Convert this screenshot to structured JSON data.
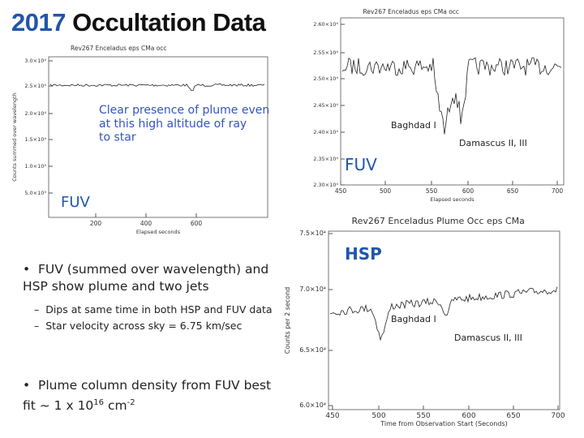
{
  "header": {
    "year": "2017",
    "title": "Occultation Data"
  },
  "figures": [
    {
      "title": "Rev267 Enceladus eps CMa occ",
      "yticks": [
        "3.0×10⁴",
        "2.5×10⁴",
        "2.0×10⁴",
        "1.5×10⁴",
        "1.0×10⁴",
        "5.0×10³"
      ],
      "xticks": [
        "200",
        "400",
        "600"
      ],
      "xlabel": "Elapsed seconds",
      "ylabel": "Counts summed over wavelength",
      "annotations": [
        "Clear presence of plume even at this high altitude of ray to star",
        "FUV"
      ]
    },
    {
      "title": "Rev267 Enceladus eps CMa occ",
      "yticks": [
        "2.60×10⁴",
        "2.55×10⁴",
        "2.50×10⁴",
        "2.45×10⁴",
        "2.40×10⁴",
        "2.35×10⁴",
        "2.30×10⁴"
      ],
      "xticks": [
        "450",
        "500",
        "550",
        "600",
        "650",
        "700"
      ],
      "xlabel": "Elapsed seconds",
      "annotations": [
        "Baghdad I",
        "Damascus II, III",
        "FUV"
      ]
    },
    {
      "title": "Rev267 Enceladus Plume Occ eps CMa",
      "yticks": [
        "7.5×10⁴",
        "7.0×10⁴",
        "6.5×10⁴",
        "6.0×10⁴"
      ],
      "xticks": [
        "450",
        "500",
        "550",
        "600",
        "650",
        "700"
      ],
      "xlabel": "Time from Observation Start (Seconds)",
      "ylabel": "Counts per 2 second",
      "annotations": [
        "HSP",
        "Baghdad I",
        "Damascus II, III"
      ]
    }
  ],
  "bullets": [
    {
      "text": "FUV (summed over wavelength) and HSP show plume and two jets",
      "sub": [
        "Dips at same time in both HSP and FUV data",
        "Star velocity across sky = 6.75 km/sec"
      ]
    },
    {
      "parts": [
        "Plume column density from FUV best fit ~ 1 x 10",
        "16",
        " cm",
        "-2"
      ]
    }
  ]
}
